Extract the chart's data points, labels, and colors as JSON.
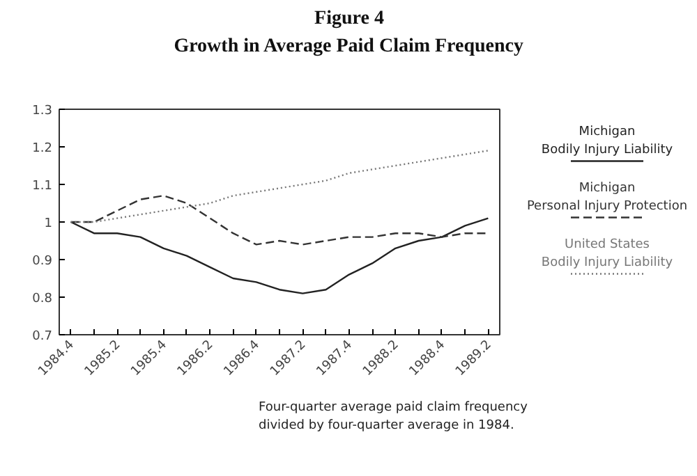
{
  "chart_data": {
    "type": "line",
    "title": "Figure 4",
    "subtitle": "Growth in Average Paid Claim Frequency",
    "categories": [
      "1984.4",
      null,
      "1985.2",
      null,
      "1985.4",
      null,
      "1986.2",
      null,
      "1986.4",
      null,
      "1987.2",
      null,
      "1987.4",
      null,
      "1988.2",
      null,
      "1988.4",
      null,
      "1989.2"
    ],
    "series": [
      {
        "name": "Michigan\nBodily Injury Liability",
        "color": "#222222",
        "line_style": "solid",
        "values": [
          1.0,
          0.97,
          0.97,
          0.96,
          0.93,
          0.91,
          0.88,
          0.85,
          0.84,
          0.82,
          0.81,
          0.82,
          0.86,
          0.89,
          0.93,
          0.95,
          0.96,
          0.99,
          1.01
        ]
      },
      {
        "name": "Michigan\nPersonal Injury Protection",
        "color": "#333333",
        "line_style": "dashed",
        "values": [
          1.0,
          1.0,
          1.03,
          1.06,
          1.07,
          1.05,
          1.01,
          0.97,
          0.94,
          0.95,
          0.94,
          0.95,
          0.96,
          0.96,
          0.97,
          0.97,
          0.96,
          0.97,
          0.97
        ]
      },
      {
        "name": "United States\nBodily Injury Liability",
        "color": "#777777",
        "line_style": "dotted",
        "values": [
          1.0,
          1.0,
          1.01,
          1.02,
          1.03,
          1.04,
          1.05,
          1.07,
          1.08,
          1.09,
          1.1,
          1.11,
          1.13,
          1.14,
          1.15,
          1.16,
          1.17,
          1.18,
          1.19
        ]
      }
    ],
    "ylim": [
      0.7,
      1.3
    ],
    "yticks": [
      0.7,
      0.8,
      0.9,
      1,
      1.1,
      1.2,
      1.3
    ],
    "grid": false,
    "legend": "right",
    "annotations": [
      "Four-quarter average paid claim frequency\ndivided by four-quarter average in 1984."
    ]
  }
}
